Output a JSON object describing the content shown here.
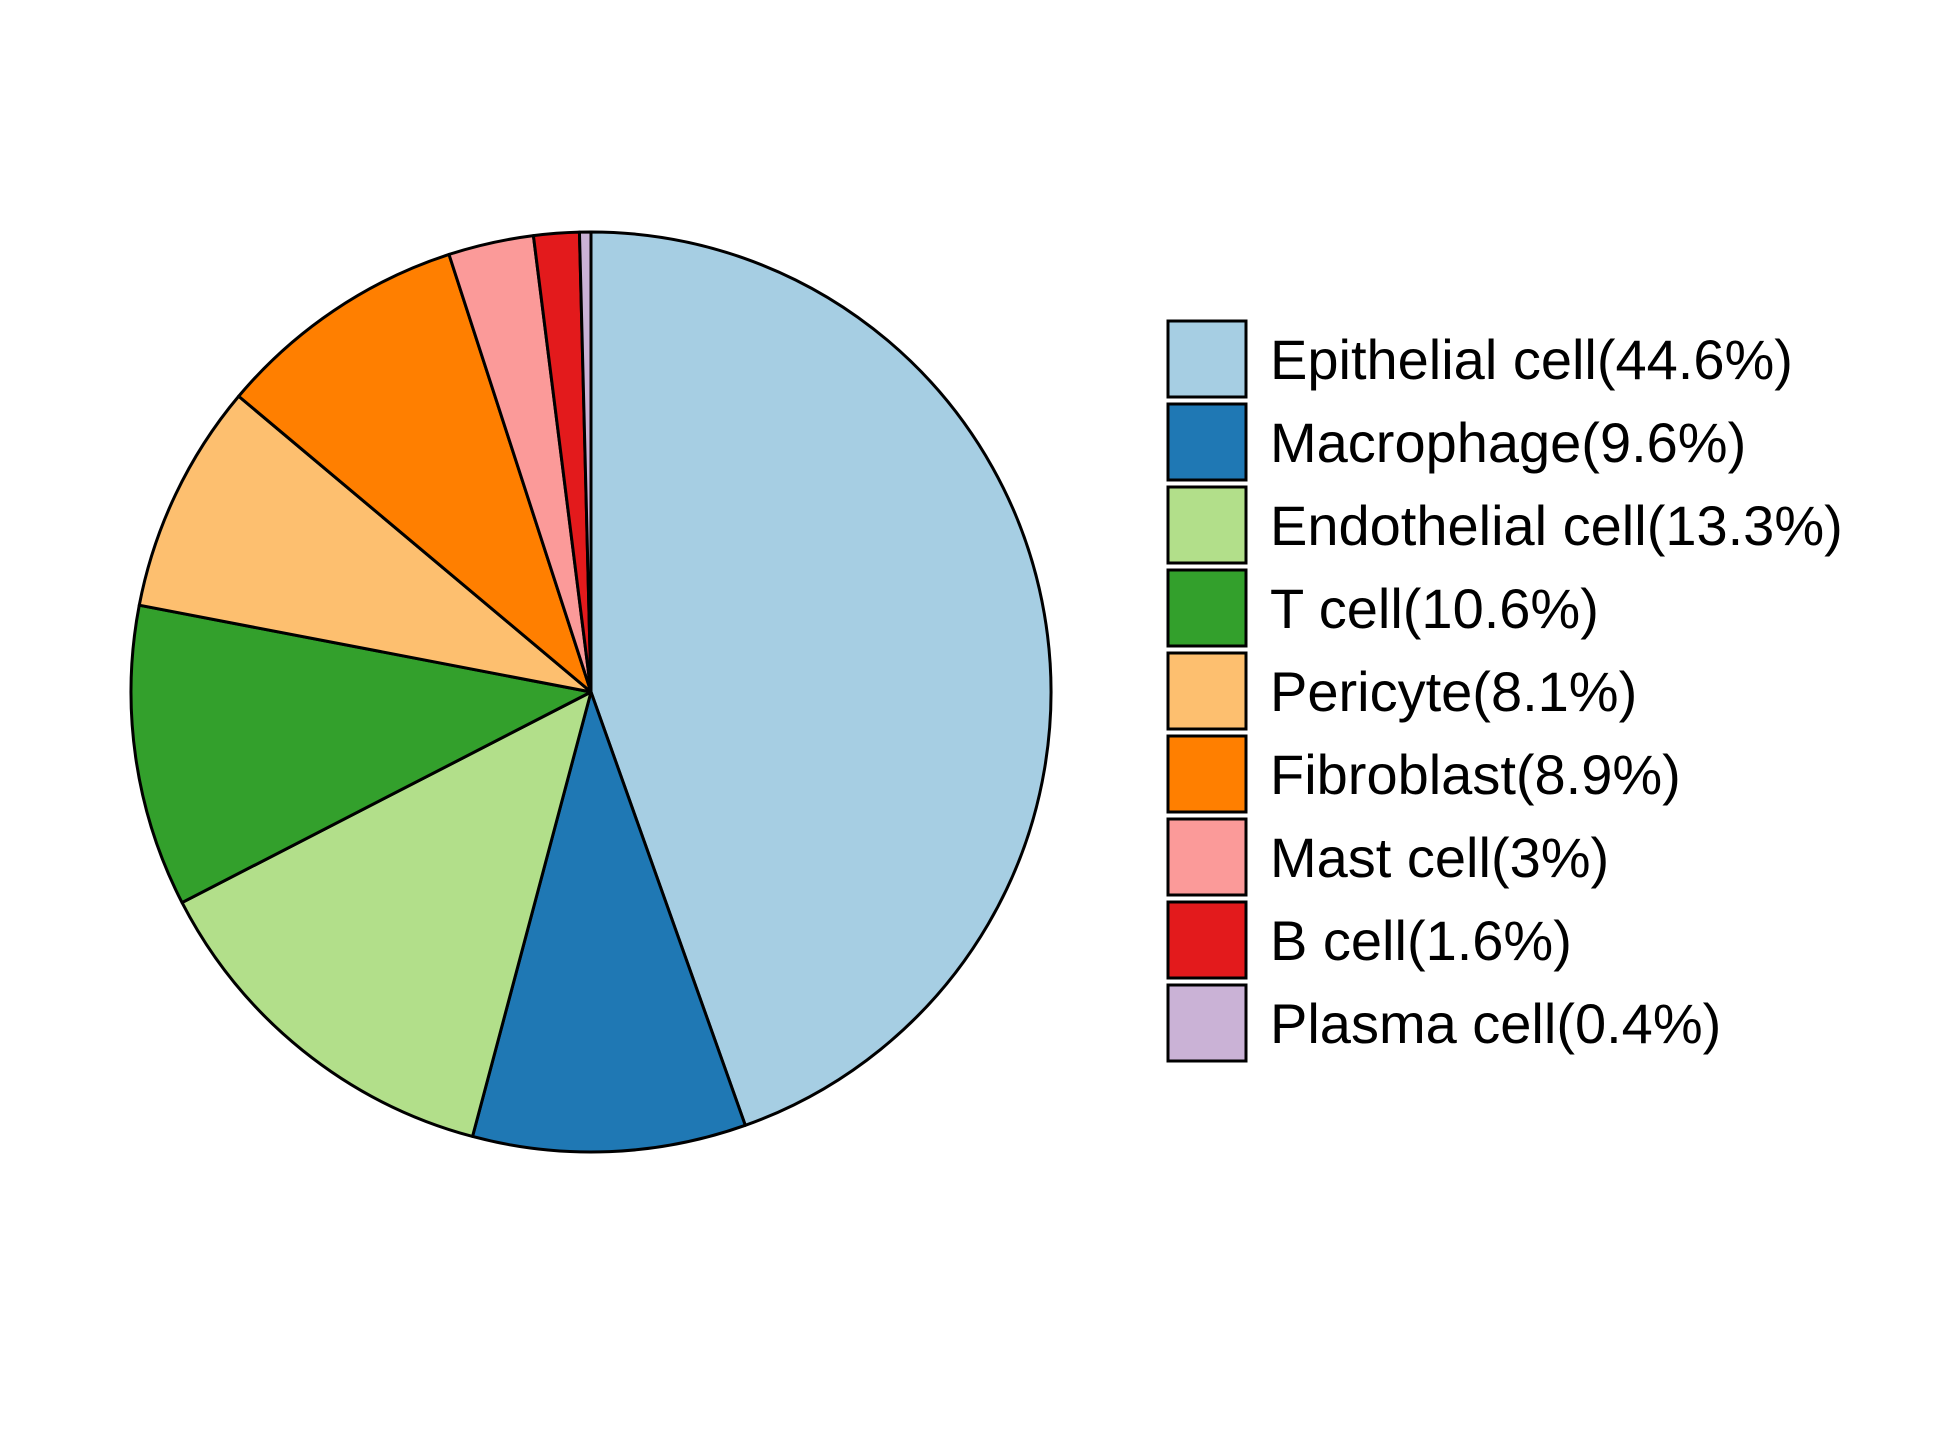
{
  "chart_data": {
    "type": "pie",
    "start": "12 o'clock",
    "direction": "clockwise",
    "legend_position": "right",
    "slices": [
      {
        "label": "Epithelial cell(44.6%)",
        "category": "Epithelial cell",
        "value": 44.6,
        "color": "#A6CEE3"
      },
      {
        "label": "Macrophage(9.6%)",
        "category": "Macrophage",
        "value": 9.6,
        "color": "#1F78B4"
      },
      {
        "label": "Endothelial cell(13.3%)",
        "category": "Endothelial cell",
        "value": 13.3,
        "color": "#B2DF8A"
      },
      {
        "label": "T cell(10.6%)",
        "category": "T cell",
        "value": 10.6,
        "color": "#33A02C"
      },
      {
        "label": "Pericyte(8.1%)",
        "category": "Pericyte",
        "value": 8.1,
        "color": "#FDBF6F"
      },
      {
        "label": "Fibroblast(8.9%)",
        "category": "Fibroblast",
        "value": 8.9,
        "color": "#FF7F00"
      },
      {
        "label": "Mast cell(3%)",
        "category": "Mast cell",
        "value": 3.0,
        "color": "#FB9A99"
      },
      {
        "label": "B cell(1.6%)",
        "category": "B cell",
        "value": 1.6,
        "color": "#E31A1C"
      },
      {
        "label": "Plasma cell(0.4%)",
        "category": "Plasma cell",
        "value": 0.4,
        "color": "#CAB2D6"
      }
    ]
  }
}
